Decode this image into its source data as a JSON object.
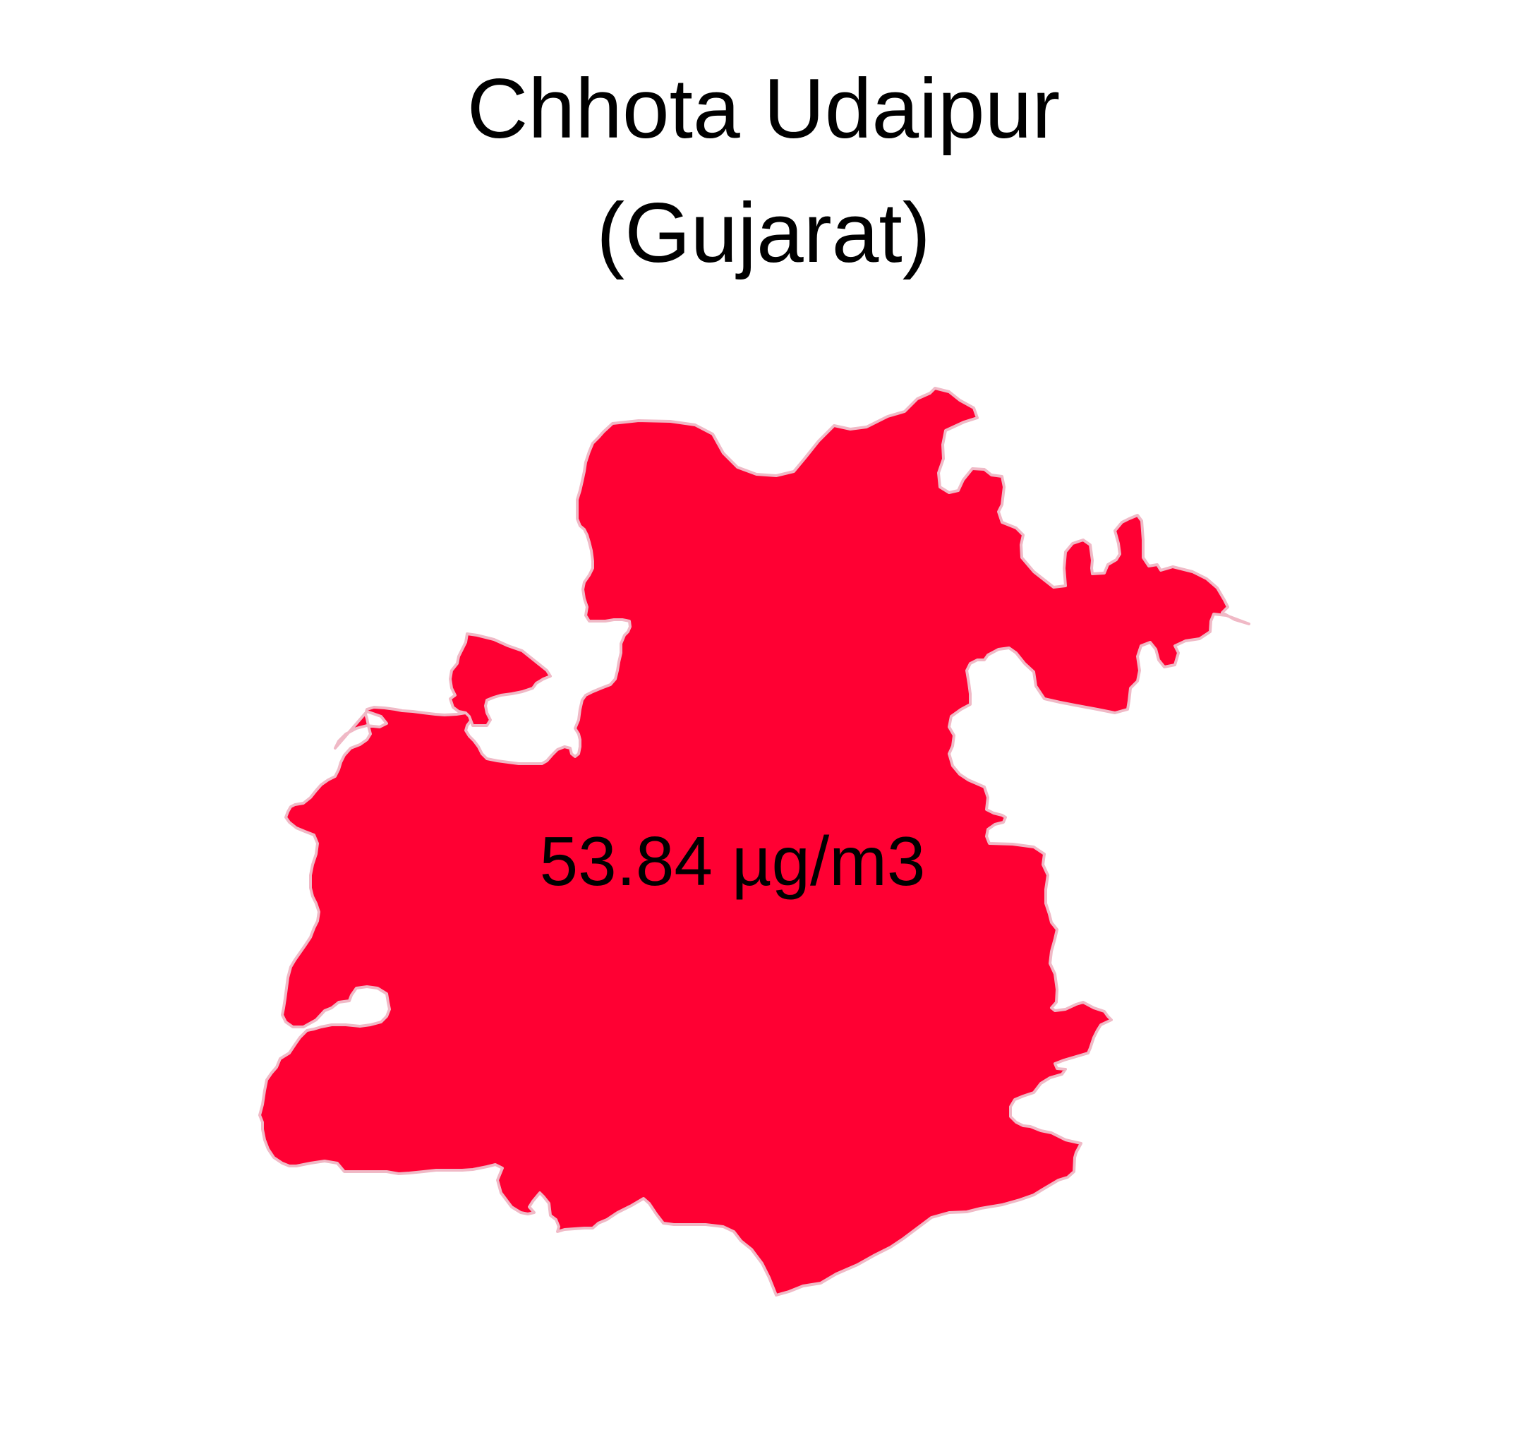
{
  "map": {
    "title_line1": "Chhota Udaipur",
    "title_line2": "(Gujarat)",
    "region_value": "53.84 µg/m3",
    "region_fill": "#ff0033",
    "region_stroke": "#f0b9c6",
    "background": "#ffffff"
  }
}
